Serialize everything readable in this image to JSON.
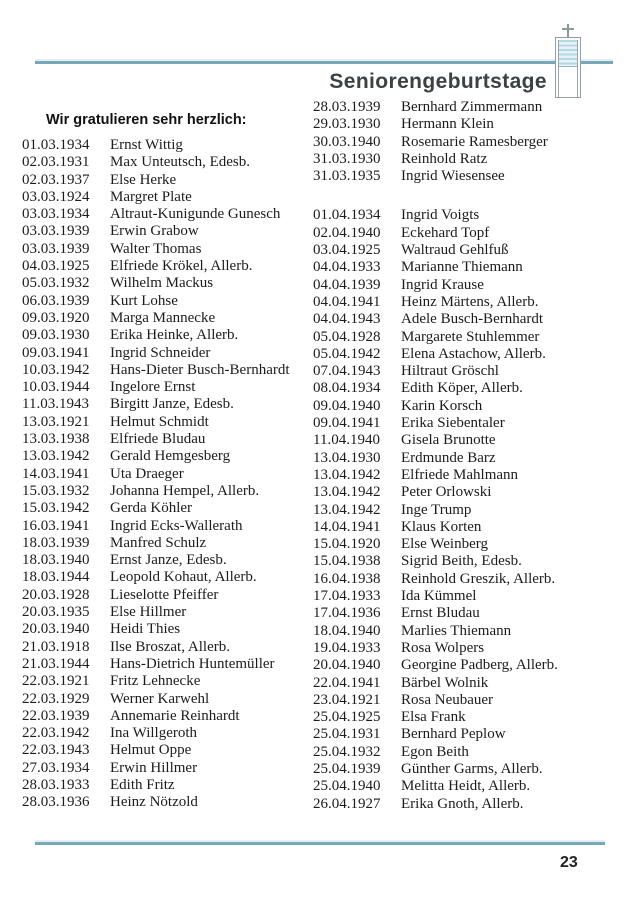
{
  "page": {
    "title": "Seniorengeburtstage",
    "greeting": "Wir gratulieren sehr herzlich:",
    "page_number": "23",
    "accent_color": "#78a8b8",
    "shutter_color": "#b5d8e6",
    "title_color": "#3b4144",
    "logo": "church-tower-with-cross"
  },
  "birthdays": {
    "left_column": [
      {
        "date": "01.03.1934",
        "name": "Ernst Wittig"
      },
      {
        "date": "02.03.1931",
        "name": "Max Unteutsch, Edesb."
      },
      {
        "date": "02.03.1937",
        "name": "Else Herke"
      },
      {
        "date": "03.03.1924",
        "name": "Margret Plate"
      },
      {
        "date": "03.03.1934",
        "name": "Altraut-Kunigunde Gunesch"
      },
      {
        "date": "03.03.1939",
        "name": "Erwin Grabow"
      },
      {
        "date": "03.03.1939",
        "name": "Walter Thomas"
      },
      {
        "date": "04.03.1925",
        "name": "Elfriede Krökel, Allerb."
      },
      {
        "date": "05.03.1932",
        "name": "Wilhelm Mackus"
      },
      {
        "date": "06.03.1939",
        "name": "Kurt Lohse"
      },
      {
        "date": "09.03.1920",
        "name": "Marga Mannecke"
      },
      {
        "date": "09.03.1930",
        "name": "Erika Heinke, Allerb."
      },
      {
        "date": "09.03.1941",
        "name": "Ingrid Schneider"
      },
      {
        "date": "10.03.1942",
        "name": "Hans-Dieter Busch-Bernhardt"
      },
      {
        "date": "10.03.1944",
        "name": "Ingelore Ernst"
      },
      {
        "date": "11.03.1943",
        "name": "Birgitt Janze, Edesb."
      },
      {
        "date": "13.03.1921",
        "name": "Helmut Schmidt"
      },
      {
        "date": "13.03.1938",
        "name": "Elfriede Bludau"
      },
      {
        "date": "13.03.1942",
        "name": "Gerald Hemgesberg"
      },
      {
        "date": "14.03.1941",
        "name": "Uta Draeger"
      },
      {
        "date": "15.03.1932",
        "name": "Johanna Hempel, Allerb."
      },
      {
        "date": "15.03.1942",
        "name": "Gerda Köhler"
      },
      {
        "date": "16.03.1941",
        "name": "Ingrid Ecks-Wallerath"
      },
      {
        "date": "18.03.1939",
        "name": "Manfred Schulz"
      },
      {
        "date": "18.03.1940",
        "name": "Ernst Janze, Edesb."
      },
      {
        "date": "18.03.1944",
        "name": "Leopold Kohaut, Allerb."
      },
      {
        "date": "20.03.1928",
        "name": "Lieselotte Pfeiffer"
      },
      {
        "date": "20.03.1935",
        "name": "Else Hillmer"
      },
      {
        "date": "20.03.1940",
        "name": "Heidi Thies"
      },
      {
        "date": "21.03.1918",
        "name": "Ilse Broszat, Allerb."
      },
      {
        "date": "21.03.1944",
        "name": "Hans-Dietrich Huntemüller"
      },
      {
        "date": "22.03.1921",
        "name": "Fritz Lehnecke"
      },
      {
        "date": "22.03.1929",
        "name": "Werner Karwehl"
      },
      {
        "date": "22.03.1939",
        "name": "Annemarie Reinhardt"
      },
      {
        "date": "22.03.1942",
        "name": "Ina Willgeroth"
      },
      {
        "date": "22.03.1943",
        "name": "Helmut Oppe"
      },
      {
        "date": "27.03.1934",
        "name": "Erwin Hillmer"
      },
      {
        "date": "28.03.1933",
        "name": "Edith Fritz"
      },
      {
        "date": "28.03.1936",
        "name": "Heinz Nötzold"
      }
    ],
    "right_column_march": [
      {
        "date": "28.03.1939",
        "name": "Bernhard Zimmermann"
      },
      {
        "date": "29.03.1930",
        "name": "Hermann Klein"
      },
      {
        "date": "30.03.1940",
        "name": "Rosemarie Ramesberger"
      },
      {
        "date": "31.03.1930",
        "name": "Reinhold Ratz"
      },
      {
        "date": "31.03.1935",
        "name": "Ingrid Wiesensee"
      }
    ],
    "right_column_april": [
      {
        "date": "01.04.1934",
        "name": "Ingrid Voigts"
      },
      {
        "date": "02.04.1940",
        "name": "Eckehard Topf"
      },
      {
        "date": "03.04.1925",
        "name": "Waltraud Gehlfuß"
      },
      {
        "date": "04.04.1933",
        "name": "Marianne Thiemann"
      },
      {
        "date": "04.04.1939",
        "name": "Ingrid Krause"
      },
      {
        "date": "04.04.1941",
        "name": "Heinz Märtens, Allerb."
      },
      {
        "date": "04.04.1943",
        "name": "Adele Busch-Bernhardt"
      },
      {
        "date": "05.04.1928",
        "name": "Margarete Stuhlemmer"
      },
      {
        "date": "05.04.1942",
        "name": "Elena Astachow, Allerb."
      },
      {
        "date": "07.04.1943",
        "name": "Hiltraut Gröschl"
      },
      {
        "date": "08.04.1934",
        "name": "Edith Köper, Allerb."
      },
      {
        "date": "09.04.1940",
        "name": "Karin Korsch"
      },
      {
        "date": "09.04.1941",
        "name": "Erika Siebentaler"
      },
      {
        "date": "11.04.1940",
        "name": "Gisela Brunotte"
      },
      {
        "date": "13.04.1930",
        "name": "Erdmunde Barz"
      },
      {
        "date": "13.04.1942",
        "name": "Elfriede Mahlmann"
      },
      {
        "date": "13.04.1942",
        "name": "Peter Orlowski"
      },
      {
        "date": "13.04.1942",
        "name": "Inge Trump"
      },
      {
        "date": "14.04.1941",
        "name": "Klaus Korten"
      },
      {
        "date": "15.04.1920",
        "name": "Else Weinberg"
      },
      {
        "date": "15.04.1938",
        "name": "Sigrid Beith, Edesb."
      },
      {
        "date": "16.04.1938",
        "name": "Reinhold Greszik, Allerb."
      },
      {
        "date": "17.04.1933",
        "name": "Ida Kümmel"
      },
      {
        "date": "17.04.1936",
        "name": "Ernst Bludau"
      },
      {
        "date": "18.04.1940",
        "name": "Marlies Thiemann"
      },
      {
        "date": "19.04.1933",
        "name": "Rosa Wolpers"
      },
      {
        "date": "20.04.1940",
        "name": "Georgine Padberg, Allerb."
      },
      {
        "date": "22.04.1941",
        "name": "Bärbel Wolnik"
      },
      {
        "date": "23.04.1921",
        "name": "Rosa Neubauer"
      },
      {
        "date": "25.04.1925",
        "name": "Elsa Frank"
      },
      {
        "date": "25.04.1931",
        "name": "Bernhard Peplow"
      },
      {
        "date": "25.04.1932",
        "name": "Egon Beith"
      },
      {
        "date": "25.04.1939",
        "name": "Günther Garms, Allerb."
      },
      {
        "date": "25.04.1940",
        "name": "Melitta Heidt, Allerb."
      },
      {
        "date": "26.04.1927",
        "name": "Erika Gnoth, Allerb."
      }
    ]
  }
}
